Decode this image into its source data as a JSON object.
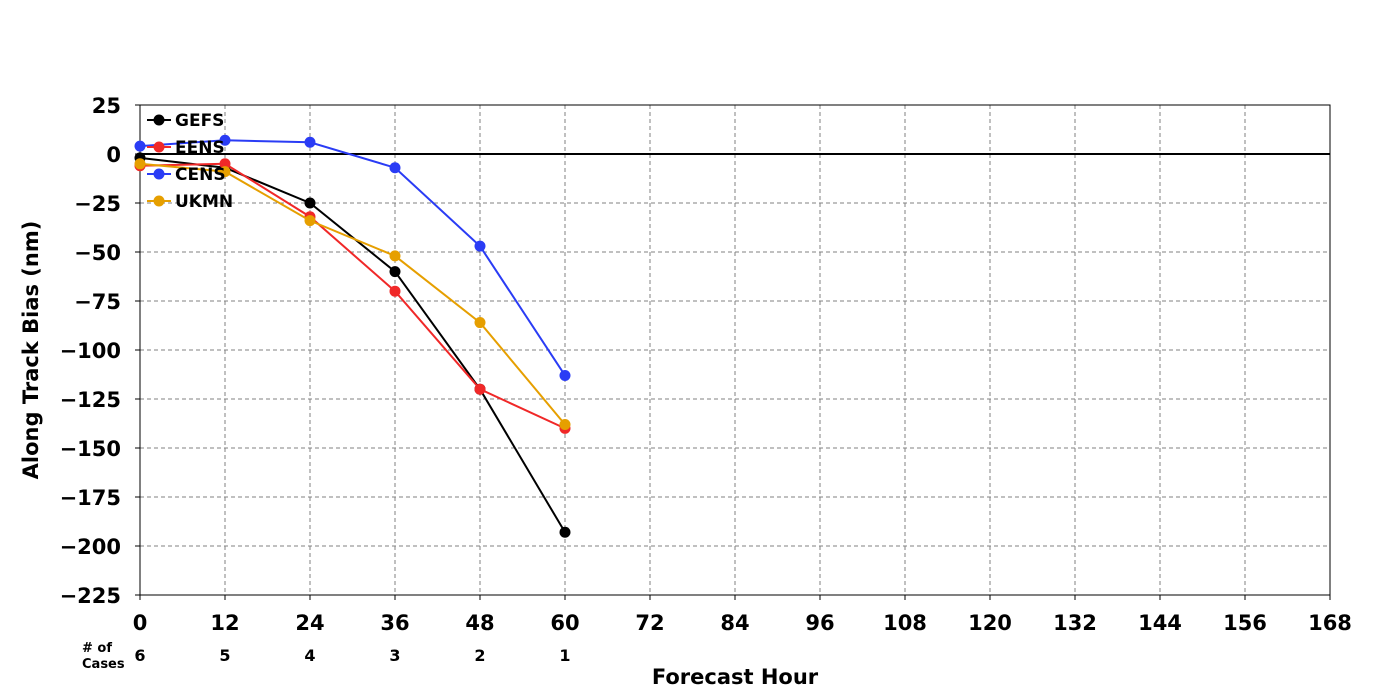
{
  "chart_data": {
    "type": "line",
    "xlabel": "Forecast Hour",
    "ylabel": "Along Track Bias (nm)",
    "xlim": [
      0,
      168
    ],
    "ylim": [
      -225,
      25
    ],
    "x_ticks": [
      "0",
      "12",
      "24",
      "36",
      "48",
      "60",
      "72",
      "84",
      "96",
      "108",
      "120",
      "132",
      "144",
      "156",
      "168"
    ],
    "y_ticks": [
      "25",
      "0",
      "−25",
      "−50",
      "−75",
      "−100",
      "−125",
      "−150",
      "−175",
      "−200",
      "−225"
    ],
    "grid": true,
    "legend_position": "top-left",
    "zero_line": true,
    "series": [
      {
        "name": "GEFS",
        "color": "#000000",
        "x": [
          0,
          12,
          24,
          36,
          48,
          60
        ],
        "y": [
          -2,
          -7,
          -25,
          -60,
          -120,
          -193
        ]
      },
      {
        "name": "EENS",
        "color": "#f02828",
        "x": [
          0,
          12,
          24,
          36,
          48,
          60
        ],
        "y": [
          -6,
          -5,
          -32,
          -70,
          -120,
          -140
        ]
      },
      {
        "name": "CENS",
        "color": "#2a3cf5",
        "x": [
          0,
          12,
          24,
          36,
          48,
          60
        ],
        "y": [
          4,
          7,
          6,
          -7,
          -47,
          -113
        ]
      },
      {
        "name": "UKMN",
        "color": "#e69f00",
        "x": [
          0,
          12,
          24,
          36,
          48,
          60
        ],
        "y": [
          -5,
          -9,
          -34,
          -52,
          -86,
          -138
        ]
      }
    ],
    "cases": {
      "label_line1": "# of",
      "label_line2": "Cases",
      "x": [
        0,
        12,
        24,
        36,
        48,
        60
      ],
      "values": [
        "6",
        "5",
        "4",
        "3",
        "2",
        "1"
      ]
    }
  }
}
